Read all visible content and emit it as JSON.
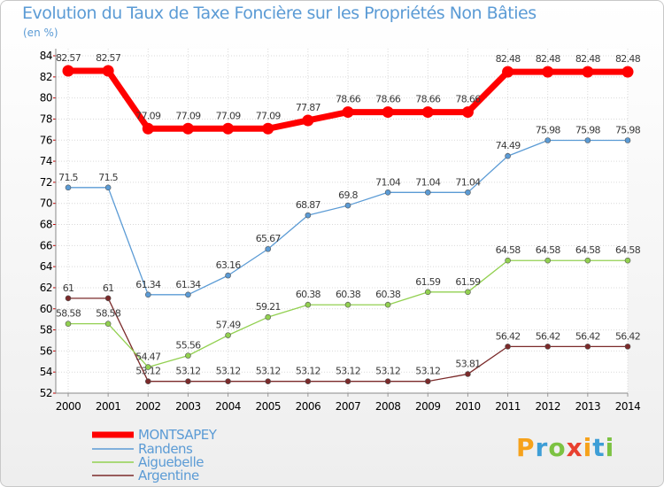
{
  "title": "Evolution du Taux de Taxe Foncière sur les Propriétés Non Bâties",
  "unit_label": "(en %)",
  "brand": {
    "letters": [
      "P",
      "r",
      "o",
      "x",
      "i",
      "t",
      "i"
    ],
    "colors": [
      "#f6a21b",
      "#3e9ed6",
      "#7cc242",
      "#e8402f",
      "#f6a21b",
      "#3e9ed6",
      "#7cc242"
    ]
  },
  "chart_data": {
    "type": "line",
    "title": "Evolution du Taux de Taxe Foncière sur les Propriétés Non Bâties",
    "ylabel": "(en %)",
    "xlabel": "",
    "x": [
      "2000",
      "2001",
      "2002",
      "2003",
      "2004",
      "2005",
      "2006",
      "2007",
      "2008",
      "2009",
      "2010",
      "2011",
      "2012",
      "2013",
      "2014"
    ],
    "ylim": [
      52,
      84
    ],
    "yticks": [
      52,
      54,
      56,
      58,
      60,
      62,
      64,
      66,
      68,
      70,
      72,
      74,
      76,
      78,
      80,
      82,
      84
    ],
    "grid": true,
    "legend_position": "bottom-left",
    "series": [
      {
        "name": "MONTSAPEY",
        "color": "#ff0000",
        "emphasis": true,
        "values": [
          82.57,
          82.57,
          77.09,
          77.09,
          77.09,
          77.09,
          77.87,
          78.66,
          78.66,
          78.66,
          78.66,
          82.48,
          82.48,
          82.48,
          82.48
        ],
        "labels": [
          "82.57",
          "82.57",
          "77.09",
          "77.09",
          "77.09",
          "77.09",
          "77.87",
          "78.66",
          "78.66",
          "78.66",
          "78.66",
          "82.48",
          "82.48",
          "82.48",
          "82.48"
        ]
      },
      {
        "name": "Randens",
        "color": "#5b9bd5",
        "values": [
          71.5,
          71.5,
          61.34,
          61.34,
          63.16,
          65.67,
          68.87,
          69.8,
          71.04,
          71.04,
          71.04,
          74.49,
          75.98,
          75.98,
          75.98
        ],
        "labels": [
          "71.5",
          "71.5",
          "61.34",
          "61.34",
          "63.16",
          "65.67",
          "68.87",
          "69.8",
          "71.04",
          "71.04",
          "71.04",
          "74.49",
          "75.98",
          "75.98",
          "75.98"
        ]
      },
      {
        "name": "Aiguebelle",
        "color": "#92d050",
        "values": [
          58.58,
          58.58,
          54.47,
          55.56,
          57.49,
          59.21,
          60.38,
          60.38,
          60.38,
          61.59,
          61.59,
          64.58,
          64.58,
          64.58,
          64.58
        ],
        "labels": [
          "58.58",
          "58.58",
          "54.47",
          "55.56",
          "57.49",
          "59.21",
          "60.38",
          "60.38",
          "60.38",
          "61.59",
          "61.59",
          "64.58",
          "64.58",
          "64.58",
          "64.58"
        ]
      },
      {
        "name": "Argentine",
        "color": "#7b2a2a",
        "values": [
          61,
          61,
          53.12,
          53.12,
          53.12,
          53.12,
          53.12,
          53.12,
          53.12,
          53.12,
          53.81,
          56.42,
          56.42,
          56.42,
          56.42
        ],
        "labels": [
          "61",
          "61",
          "53.12",
          "53.12",
          "53.12",
          "53.12",
          "53.12",
          "53.12",
          "53.12",
          "53.12",
          "53.81",
          "56.42",
          "56.42",
          "56.42",
          "56.42"
        ]
      }
    ]
  }
}
